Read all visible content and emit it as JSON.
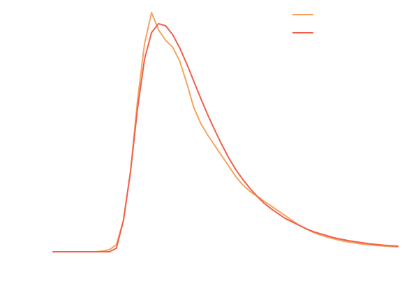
{
  "chart_data": {
    "type": "line",
    "title": "",
    "xlabel": "",
    "ylabel": "",
    "grid": false,
    "legend_placement": "top-right",
    "xlim": [
      0,
      49
    ],
    "ylim": [
      0,
      34.5
    ],
    "series": [
      {
        "color": "#f4a460",
        "x": [
          0,
          1,
          2,
          3,
          4,
          5,
          6,
          7,
          8,
          9,
          10,
          11,
          12,
          13,
          14,
          15,
          16,
          17,
          18,
          19,
          20,
          21,
          22,
          23,
          24,
          25,
          26,
          27,
          28,
          29,
          30,
          31,
          32,
          33,
          34,
          35,
          36,
          37,
          38,
          39,
          40,
          41,
          42,
          43,
          44,
          45,
          46,
          47,
          48,
          49
        ],
        "y": [
          0,
          0,
          0,
          0,
          0,
          0,
          0,
          0.1,
          0.3,
          1.0,
          4.5,
          11.5,
          21.8,
          30.0,
          34.5,
          32.0,
          30.5,
          29.5,
          27.5,
          24.3,
          20.8,
          18.5,
          16.8,
          15.3,
          13.8,
          12.3,
          10.8,
          9.6,
          8.7,
          8.0,
          7.3,
          6.6,
          5.9,
          5.2,
          4.5,
          3.8,
          3.3,
          2.8,
          2.4,
          2.1,
          1.85,
          1.6,
          1.4,
          1.25,
          1.1,
          1.0,
          0.9,
          0.82,
          0.75,
          0.7
        ]
      },
      {
        "color": "#f25f4c",
        "x": [
          0,
          1,
          2,
          3,
          4,
          5,
          6,
          7,
          8,
          9,
          10,
          11,
          12,
          13,
          14,
          15,
          16,
          17,
          18,
          19,
          20,
          21,
          22,
          23,
          24,
          25,
          26,
          27,
          28,
          29,
          30,
          31,
          32,
          33,
          34,
          35,
          36,
          37,
          38,
          39,
          40,
          41,
          42,
          43,
          44,
          45,
          46,
          47,
          48,
          49
        ],
        "y": [
          0,
          0,
          0,
          0,
          0,
          0,
          0,
          0,
          0,
          0.5,
          4.5,
          11.5,
          20.6,
          27.8,
          31.6,
          32.9,
          32.6,
          31.3,
          29.4,
          27.1,
          24.6,
          22.1,
          19.7,
          17.5,
          15.4,
          13.5,
          11.8,
          10.4,
          9.1,
          8.0,
          7.0,
          6.2,
          5.5,
          4.8,
          4.3,
          3.8,
          3.3,
          2.9,
          2.6,
          2.3,
          2.0,
          1.8,
          1.6,
          1.45,
          1.3,
          1.15,
          1.05,
          0.95,
          0.87,
          0.8
        ]
      }
    ]
  }
}
